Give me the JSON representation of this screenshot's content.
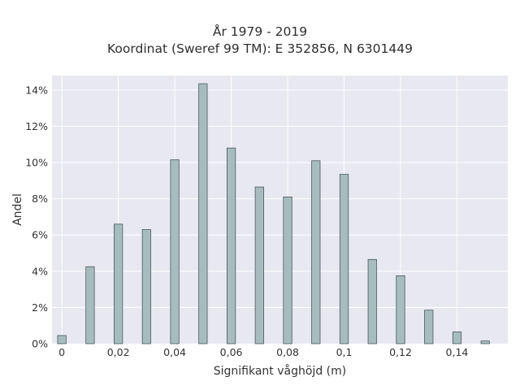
{
  "chart_data": {
    "type": "bar",
    "title": "År 1979 - 2019",
    "subtitle": "Koordinat (Sweref 99 TM): E 352856, N 6301449",
    "xlabel": "Signifikant våghöjd (m)",
    "ylabel": "Andel",
    "x": [
      0,
      0.01,
      0.02,
      0.03,
      0.04,
      0.05,
      0.06,
      0.07,
      0.08,
      0.09,
      0.1,
      0.11,
      0.12,
      0.13,
      0.14,
      0.15
    ],
    "values": [
      0.45,
      4.25,
      6.6,
      6.3,
      10.15,
      14.35,
      10.8,
      8.65,
      8.1,
      10.1,
      9.35,
      4.65,
      3.75,
      1.85,
      0.65,
      0.15
    ],
    "xlim": [
      -0.0035,
      0.158
    ],
    "ylim": [
      0,
      14.8
    ],
    "x_ticks": [
      0,
      0.02,
      0.04,
      0.06,
      0.08,
      0.1,
      0.12,
      0.14
    ],
    "x_tick_labels": [
      "0",
      "0,02",
      "0,04",
      "0,06",
      "0,08",
      "0,1",
      "0,12",
      "0,14"
    ],
    "y_ticks": [
      0,
      2,
      4,
      6,
      8,
      10,
      12,
      14
    ],
    "y_tick_labels": [
      "0%",
      "2%",
      "4%",
      "6%",
      "8%",
      "10%",
      "12%",
      "14%"
    ],
    "bar_color": "#a6bcbd",
    "bar_edge_color": "#4a5a5a",
    "plot_background": "#e8e8f0",
    "grid": true
  }
}
